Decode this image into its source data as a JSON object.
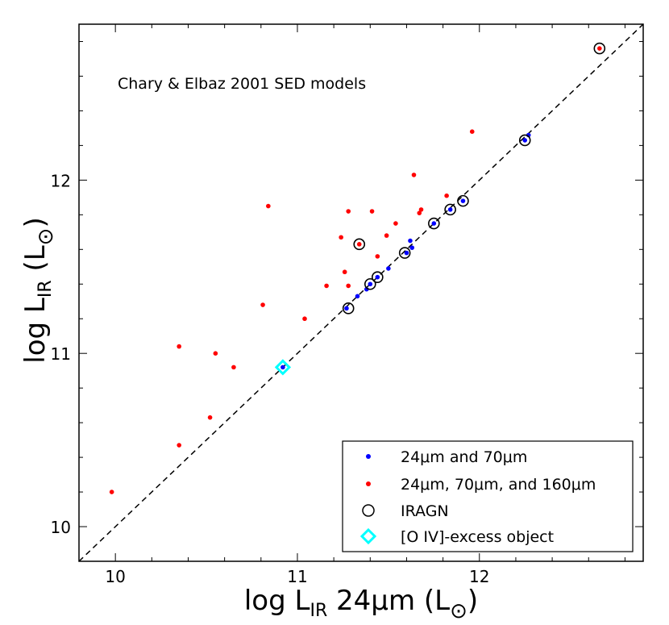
{
  "chart_data": {
    "type": "scatter",
    "title": "",
    "annotation": "Chary & Elbaz 2001 SED models",
    "xlabel": {
      "prefix": "log L",
      "sub": "IR",
      "suffix": " 24μm  (L",
      "sun": "⊙",
      "close": ")"
    },
    "ylabel": {
      "prefix": "log L",
      "sub": "IR",
      "suffix": "  (L",
      "sun": "⊙",
      "close": ")"
    },
    "xlim": [
      9.8,
      12.9
    ],
    "ylim": [
      9.8,
      12.9
    ],
    "xticks": [
      "10",
      "11",
      "12"
    ],
    "yticks": [
      "10",
      "11",
      "12"
    ],
    "grid": false,
    "legend_position": "lower-right",
    "one_to_one_line": true,
    "series": [
      {
        "name": "24μm and 70μm",
        "color": "#0000ff",
        "marker": "dot",
        "points": [
          [
            10.92,
            10.92
          ],
          [
            11.27,
            11.26
          ],
          [
            11.33,
            11.33
          ],
          [
            11.38,
            11.37
          ],
          [
            11.4,
            11.4
          ],
          [
            11.44,
            11.44
          ],
          [
            11.5,
            11.49
          ],
          [
            11.6,
            11.58
          ],
          [
            11.62,
            11.65
          ],
          [
            11.63,
            11.61
          ],
          [
            11.75,
            11.75
          ],
          [
            11.84,
            11.83
          ],
          [
            11.91,
            11.88
          ],
          [
            12.25,
            12.23
          ],
          [
            12.27,
            12.26
          ]
        ]
      },
      {
        "name": "24μm, 70μm, and 160μm",
        "color": "#ff0000",
        "marker": "dot",
        "points": [
          [
            9.98,
            10.2
          ],
          [
            10.35,
            10.47
          ],
          [
            10.52,
            10.63
          ],
          [
            10.35,
            11.04
          ],
          [
            10.55,
            11.0
          ],
          [
            10.65,
            10.92
          ],
          [
            10.81,
            11.28
          ],
          [
            10.84,
            11.85
          ],
          [
            11.04,
            11.2
          ],
          [
            11.16,
            11.39
          ],
          [
            11.24,
            11.67
          ],
          [
            11.26,
            11.47
          ],
          [
            11.28,
            11.39
          ],
          [
            11.28,
            11.82
          ],
          [
            11.34,
            11.63
          ],
          [
            11.41,
            11.82
          ],
          [
            11.44,
            11.56
          ],
          [
            11.49,
            11.68
          ],
          [
            11.54,
            11.75
          ],
          [
            11.64,
            12.03
          ],
          [
            11.67,
            11.81
          ],
          [
            11.68,
            11.83
          ],
          [
            11.82,
            11.91
          ],
          [
            11.96,
            12.28
          ],
          [
            12.66,
            12.76
          ]
        ]
      },
      {
        "name": "IRAGN",
        "color": "#000000",
        "marker": "open-circle",
        "points": [
          [
            12.66,
            12.76
          ],
          [
            12.25,
            12.23
          ],
          [
            11.91,
            11.88
          ],
          [
            11.84,
            11.83
          ],
          [
            11.75,
            11.75
          ],
          [
            11.34,
            11.63
          ],
          [
            11.59,
            11.58
          ],
          [
            11.44,
            11.44
          ],
          [
            11.4,
            11.4
          ],
          [
            11.28,
            11.26
          ]
        ]
      },
      {
        "name": "[O IV]-excess object",
        "color": "#00ffff",
        "marker": "open-diamond",
        "points": [
          [
            10.92,
            10.92
          ]
        ]
      }
    ]
  }
}
